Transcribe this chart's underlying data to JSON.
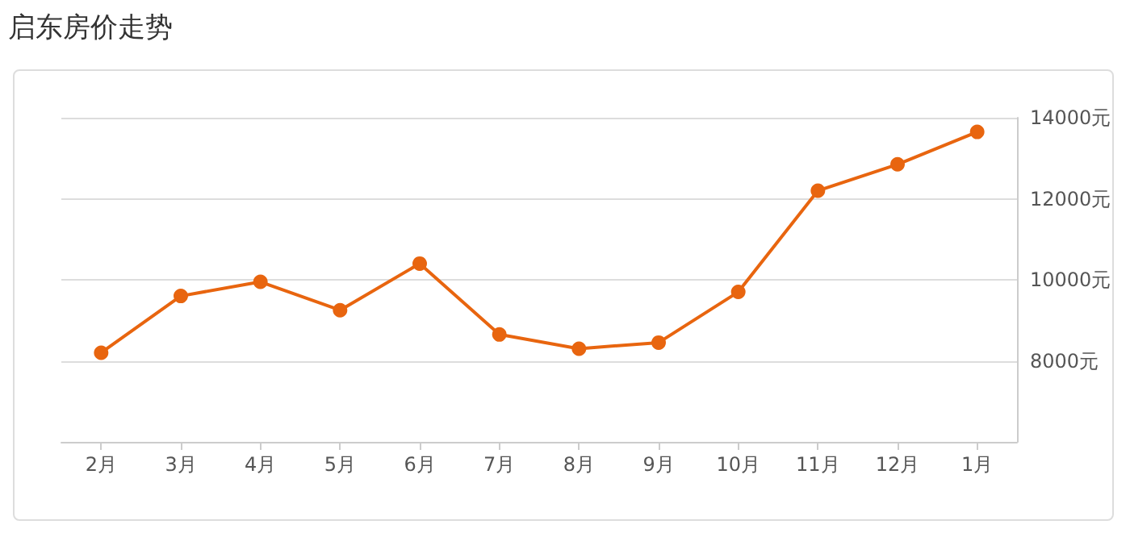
{
  "chart_data": {
    "type": "line",
    "title": "启东房价走势",
    "categories": [
      "2月",
      "3月",
      "4月",
      "5月",
      "6月",
      "7月",
      "8月",
      "9月",
      "10月",
      "11月",
      "12月",
      "1月"
    ],
    "series": [
      {
        "color": "#e8650f",
        "values": [
          8200,
          9600,
          9950,
          9250,
          10400,
          8650,
          8300,
          8450,
          9700,
          12200,
          12850,
          13650
        ]
      }
    ],
    "ylim": [
      6000,
      14000
    ],
    "yticks": [
      {
        "value": 8000,
        "label": "8000元"
      },
      {
        "value": 10000,
        "label": "10000元"
      },
      {
        "value": 12000,
        "label": "12000元"
      },
      {
        "value": 14000,
        "label": "14000元"
      }
    ],
    "grid": "y",
    "marker": "circle"
  }
}
